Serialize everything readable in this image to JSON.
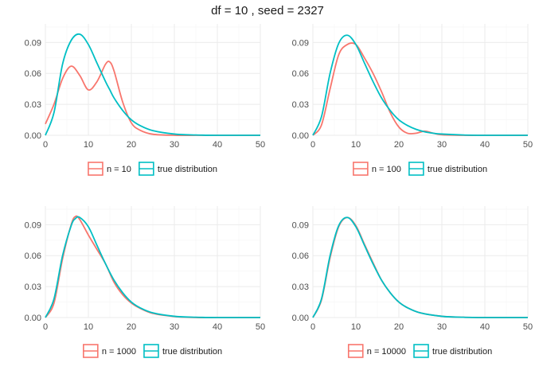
{
  "figure": {
    "title": "df = 10 , seed = 2327"
  },
  "colors": {
    "sample": "#F8766D",
    "true": "#00BFC4"
  },
  "chart_data": [
    {
      "type": "line",
      "panel": "top-left",
      "xlim": [
        0,
        50
      ],
      "ylim": [
        0,
        0.108
      ],
      "xticks": [
        0,
        10,
        20,
        30,
        40,
        50
      ],
      "xtick_labels": [
        "0",
        "10",
        "20",
        "30",
        "40",
        "50"
      ],
      "yticks": [
        0,
        0.03,
        0.06,
        0.09
      ],
      "ytick_labels": [
        "0.00",
        "0.03",
        "0.06",
        "0.09"
      ],
      "grid": true,
      "legend_position": "bottom",
      "x": [
        0,
        2,
        4,
        6,
        8,
        10,
        12,
        14,
        15,
        16,
        18,
        20,
        22,
        25,
        30,
        35,
        40,
        45,
        50
      ],
      "series": [
        {
          "name": "n = 10",
          "color": "sample",
          "values": [
            0.011,
            0.03,
            0.055,
            0.067,
            0.058,
            0.044,
            0.052,
            0.069,
            0.071,
            0.062,
            0.032,
            0.012,
            0.005,
            0.001,
            0,
            0,
            0,
            0,
            0
          ]
        },
        {
          "name": "true distribution",
          "color": "true",
          "values": [
            0,
            0.022,
            0.069,
            0.092,
            0.098,
            0.088,
            0.07,
            0.052,
            0.044,
            0.036,
            0.024,
            0.015,
            0.0095,
            0.0045,
            0.0012,
            0.0003,
            0,
            0,
            0
          ]
        }
      ]
    },
    {
      "type": "line",
      "panel": "top-right",
      "xlim": [
        0,
        50
      ],
      "ylim": [
        0,
        0.108
      ],
      "xticks": [
        0,
        10,
        20,
        30,
        40,
        50
      ],
      "xtick_labels": [
        "0",
        "10",
        "20",
        "30",
        "40",
        "50"
      ],
      "yticks": [
        0,
        0.03,
        0.06,
        0.09
      ],
      "ytick_labels": [
        "0.00",
        "0.03",
        "0.06",
        "0.09"
      ],
      "grid": true,
      "legend_position": "bottom",
      "x": [
        0,
        2,
        4,
        6,
        8,
        10,
        12,
        14,
        16,
        18,
        20,
        22,
        24,
        26,
        28,
        30,
        35,
        40,
        45,
        50
      ],
      "series": [
        {
          "name": "n = 100",
          "color": "sample",
          "values": [
            0,
            0.01,
            0.045,
            0.078,
            0.088,
            0.088,
            0.075,
            0.06,
            0.042,
            0.022,
            0.008,
            0.002,
            0.002,
            0.004,
            0.002,
            0.0005,
            0,
            0,
            0,
            0
          ]
        },
        {
          "name": "true distribution",
          "color": "true",
          "values": [
            0,
            0.018,
            0.06,
            0.089,
            0.097,
            0.088,
            0.07,
            0.052,
            0.036,
            0.024,
            0.015,
            0.0095,
            0.0058,
            0.0034,
            0.002,
            0.0012,
            0.0003,
            0,
            0,
            0
          ]
        }
      ]
    },
    {
      "type": "line",
      "panel": "bottom-left",
      "xlim": [
        0,
        50
      ],
      "ylim": [
        0,
        0.108
      ],
      "xticks": [
        0,
        10,
        20,
        30,
        40,
        50
      ],
      "xtick_labels": [
        "0",
        "10",
        "20",
        "30",
        "40",
        "50"
      ],
      "yticks": [
        0,
        0.03,
        0.06,
        0.09
      ],
      "ytick_labels": [
        "0.00",
        "0.03",
        "0.06",
        "0.09"
      ],
      "grid": true,
      "legend_position": "bottom",
      "x": [
        0,
        2,
        4,
        6,
        7,
        8,
        10,
        12,
        14,
        16,
        18,
        20,
        22,
        25,
        30,
        35,
        40,
        45,
        50
      ],
      "series": [
        {
          "name": "n = 1000",
          "color": "sample",
          "values": [
            0,
            0.014,
            0.057,
            0.09,
            0.098,
            0.095,
            0.08,
            0.066,
            0.052,
            0.034,
            0.022,
            0.014,
            0.009,
            0.004,
            0.001,
            0,
            0,
            0,
            0
          ]
        },
        {
          "name": "true distribution",
          "color": "true",
          "values": [
            0,
            0.018,
            0.06,
            0.089,
            0.096,
            0.097,
            0.088,
            0.07,
            0.052,
            0.036,
            0.024,
            0.015,
            0.0095,
            0.0045,
            0.0012,
            0.0003,
            0,
            0,
            0
          ]
        }
      ]
    },
    {
      "type": "line",
      "panel": "bottom-right",
      "xlim": [
        0,
        50
      ],
      "ylim": [
        0,
        0.108
      ],
      "xticks": [
        0,
        10,
        20,
        30,
        40,
        50
      ],
      "xtick_labels": [
        "0",
        "10",
        "20",
        "30",
        "40",
        "50"
      ],
      "yticks": [
        0,
        0.03,
        0.06,
        0.09
      ],
      "ytick_labels": [
        "0.00",
        "0.03",
        "0.06",
        "0.09"
      ],
      "grid": true,
      "legend_position": "bottom",
      "x": [
        0,
        2,
        4,
        6,
        8,
        10,
        12,
        14,
        16,
        18,
        20,
        22,
        25,
        30,
        35,
        40,
        45,
        50
      ],
      "series": [
        {
          "name": "n = 10000",
          "color": "sample",
          "values": [
            0,
            0.017,
            0.058,
            0.088,
            0.097,
            0.089,
            0.071,
            0.053,
            0.036,
            0.024,
            0.015,
            0.0095,
            0.0045,
            0.0012,
            0.0003,
            0,
            0,
            0
          ]
        },
        {
          "name": "true distribution",
          "color": "true",
          "values": [
            0,
            0.018,
            0.06,
            0.089,
            0.097,
            0.088,
            0.07,
            0.052,
            0.036,
            0.024,
            0.015,
            0.0095,
            0.0045,
            0.0012,
            0.0003,
            0,
            0,
            0
          ]
        }
      ]
    }
  ]
}
